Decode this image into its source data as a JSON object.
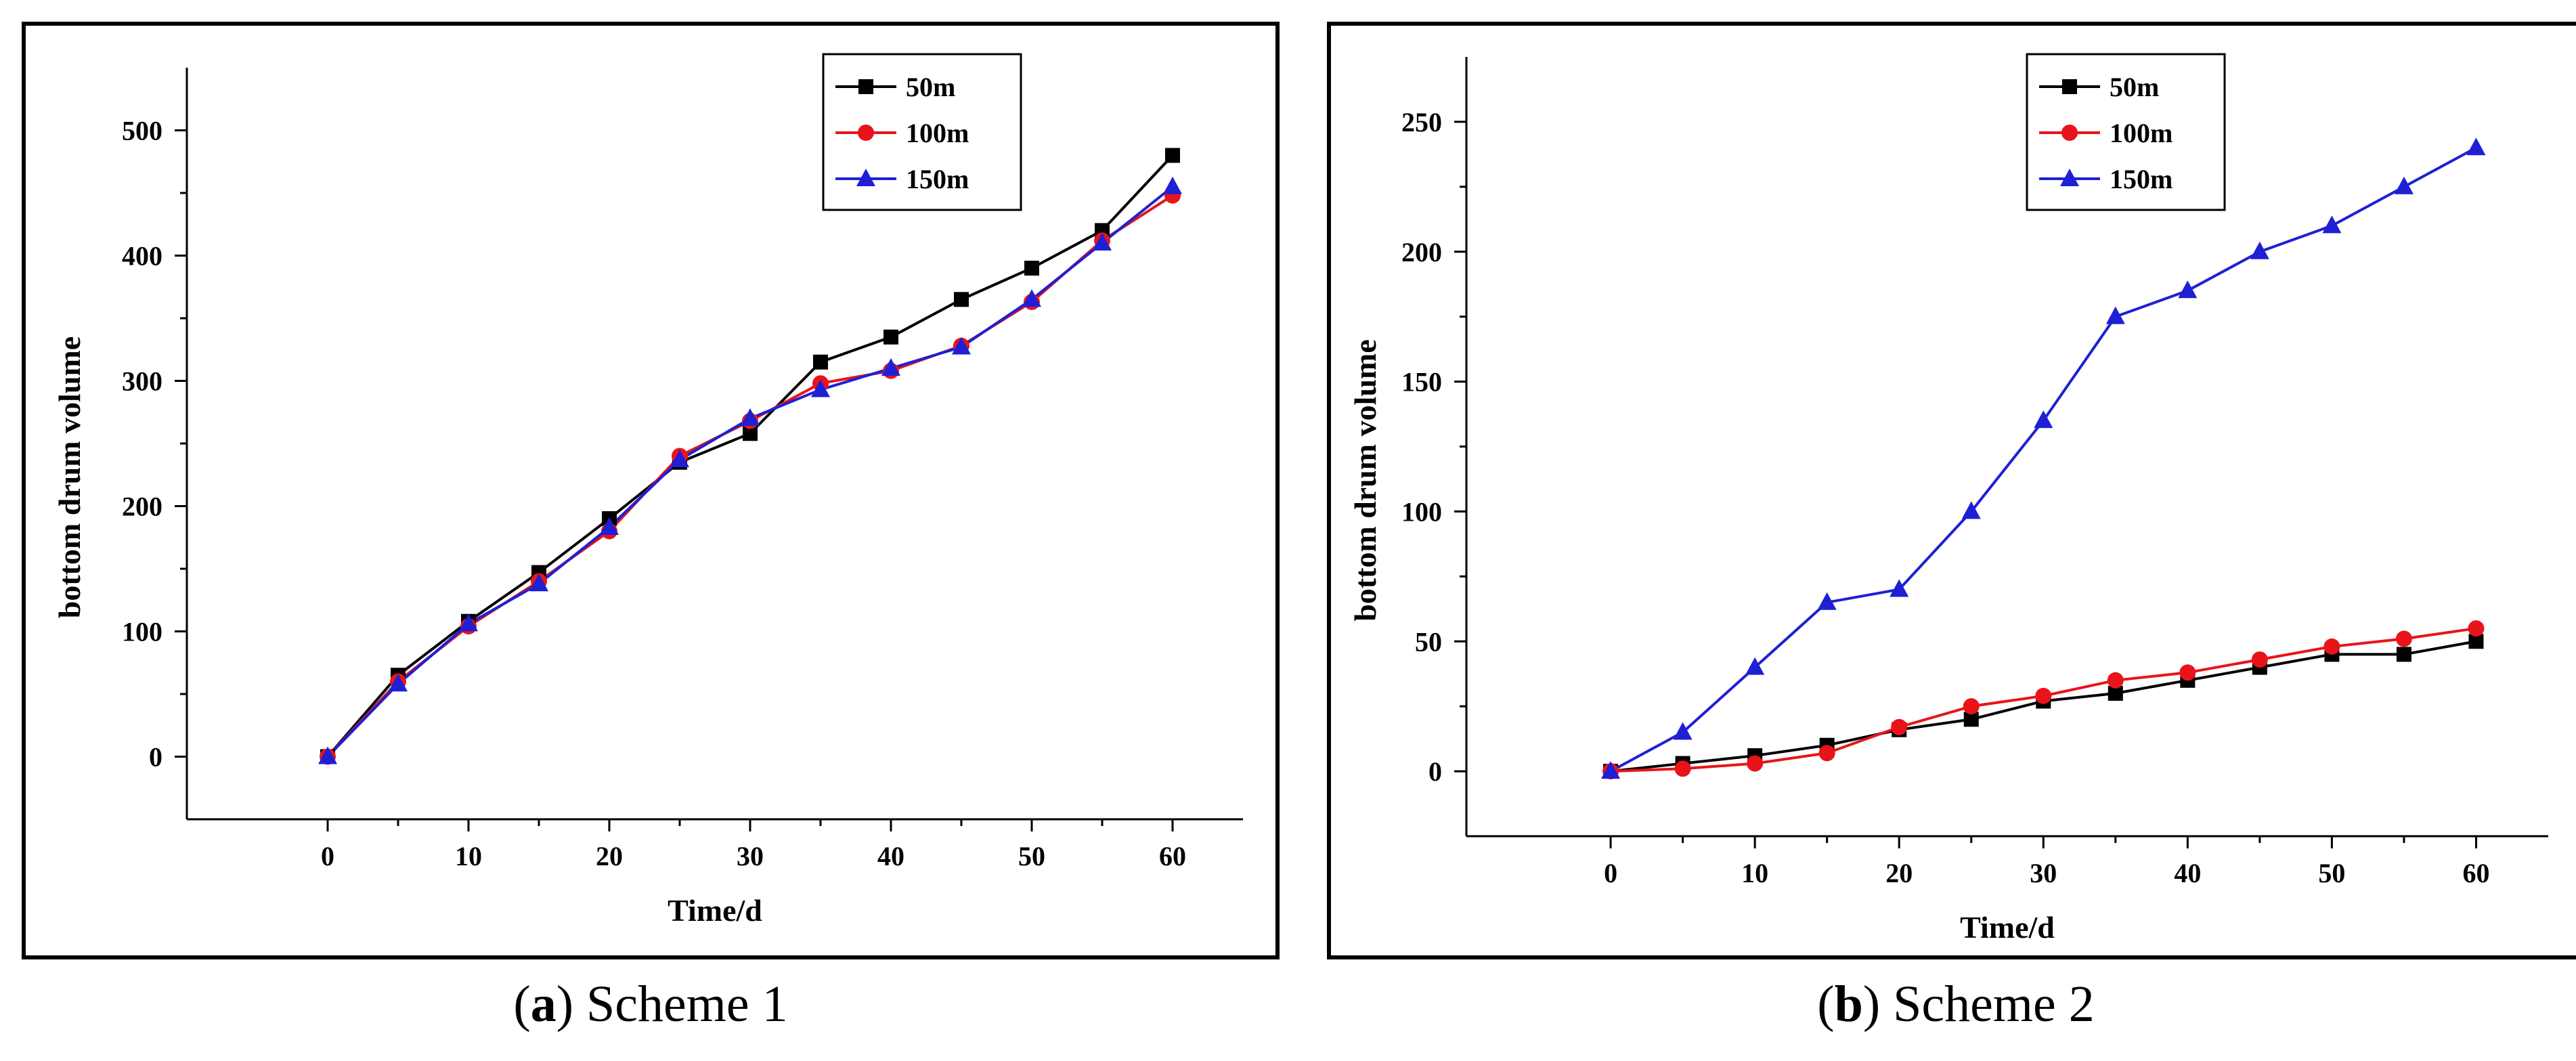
{
  "captions": {
    "a": {
      "open": "(",
      "letter": "a",
      "close": ")",
      "text": " Scheme 1"
    },
    "b": {
      "open": "(",
      "letter": "b",
      "close": ")",
      "text": " Scheme 2"
    }
  },
  "colors": {
    "s50": "#000000",
    "s100": "#e8141a",
    "s150": "#1f1fd6"
  },
  "chart_data": [
    {
      "type": "line",
      "id": "a",
      "title": "",
      "xlabel": "Time/d",
      "ylabel": "bottom drum volume",
      "xlim": [
        -10,
        65
      ],
      "ylim": [
        -50,
        550
      ],
      "xticks": [
        0,
        10,
        20,
        30,
        40,
        50,
        60
      ],
      "yticks": [
        0,
        100,
        200,
        300,
        400,
        500
      ],
      "legend_position": "top-right",
      "x": [
        0,
        5,
        10,
        15,
        20,
        25,
        30,
        35,
        40,
        45,
        50,
        55,
        60
      ],
      "series": [
        {
          "name": "50m",
          "color": "#000000",
          "marker": "square",
          "values": [
            0,
            65,
            108,
            147,
            190,
            235,
            258,
            315,
            335,
            365,
            390,
            420,
            480
          ]
        },
        {
          "name": "100m",
          "color": "#e8141a",
          "marker": "circle",
          "values": [
            0,
            60,
            104,
            140,
            180,
            240,
            268,
            298,
            308,
            328,
            363,
            412,
            448
          ]
        },
        {
          "name": "150m",
          "color": "#1f1fd6",
          "marker": "triangle",
          "values": [
            0,
            58,
            106,
            138,
            183,
            237,
            270,
            293,
            310,
            327,
            365,
            410,
            455
          ]
        }
      ]
    },
    {
      "type": "line",
      "id": "b",
      "title": "",
      "xlabel": "Time/d",
      "ylabel": "bottom drum volume",
      "xlim": [
        -10,
        65
      ],
      "ylim": [
        -25,
        275
      ],
      "xticks": [
        0,
        10,
        20,
        30,
        40,
        50,
        60
      ],
      "yticks": [
        0,
        50,
        100,
        150,
        200,
        250
      ],
      "legend_position": "top-center",
      "x": [
        0,
        5,
        10,
        15,
        20,
        25,
        30,
        35,
        40,
        45,
        50,
        55,
        60
      ],
      "series": [
        {
          "name": "50m",
          "color": "#000000",
          "marker": "square",
          "values": [
            0,
            3,
            6,
            10,
            16,
            20,
            27,
            30,
            35,
            40,
            45,
            45,
            50
          ]
        },
        {
          "name": "100m",
          "color": "#e8141a",
          "marker": "circle",
          "values": [
            0,
            1,
            3,
            7,
            17,
            25,
            29,
            35,
            38,
            43,
            48,
            51,
            55
          ]
        },
        {
          "name": "150m",
          "color": "#1f1fd6",
          "marker": "triangle",
          "values": [
            0,
            15,
            40,
            65,
            70,
            100,
            135,
            175,
            185,
            200,
            210,
            225,
            240
          ]
        }
      ]
    }
  ]
}
